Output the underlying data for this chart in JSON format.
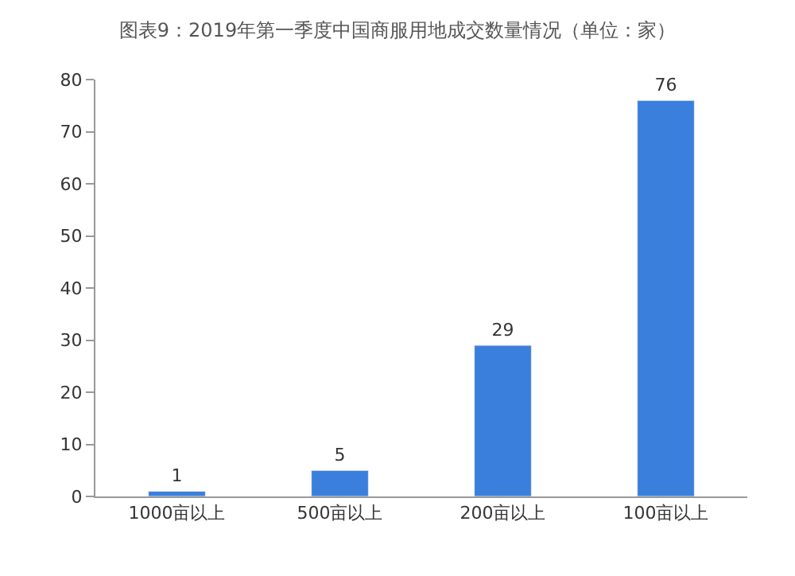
{
  "chart_data": {
    "type": "bar",
    "title": "图表9：2019年第一季度中国商服用地成交数量情况（单位：家）",
    "categories": [
      "1000亩以上",
      "500亩以上",
      "200亩以上",
      "100亩以上"
    ],
    "values": [
      1,
      5,
      29,
      76
    ],
    "color": "#3b7fdd",
    "ylim": [
      0,
      80
    ],
    "yticks": [
      0,
      10,
      20,
      30,
      40,
      50,
      60,
      70,
      80
    ],
    "data_labels": true
  }
}
